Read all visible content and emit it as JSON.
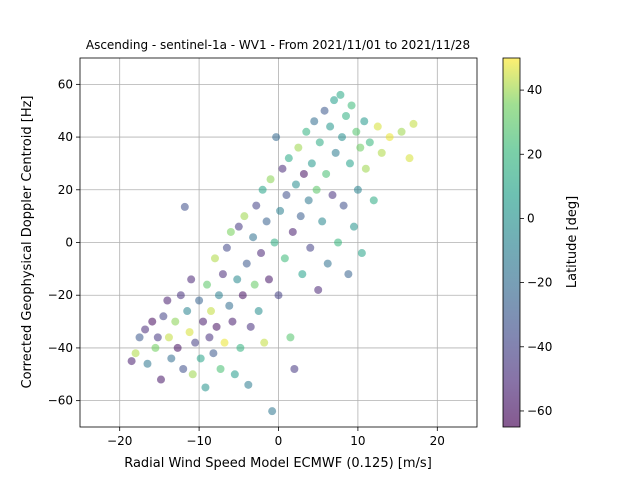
{
  "chart_data": {
    "type": "scatter",
    "title": "Ascending - sentinel-1a - WV1 - From 2021/11/01 to 2021/11/28",
    "xlabel": "Radial Wind Speed Model ECMWF (0.125) [m/s]",
    "ylabel": "Corrected Geophysical Doppler Centroid [Hz]",
    "xlim": [
      -25,
      25
    ],
    "ylim": [
      -70,
      70
    ],
    "xticks": [
      -20,
      -10,
      0,
      10,
      20
    ],
    "yticks": [
      -60,
      -40,
      -20,
      0,
      20,
      40,
      60
    ],
    "xtick_labels": [
      "−20",
      "−10",
      "0",
      "10",
      "20"
    ],
    "ytick_labels": [
      "−60",
      "−40",
      "−20",
      "0",
      "20",
      "40",
      "60"
    ],
    "grid": true,
    "colorbar": {
      "label": "Latitude [deg]",
      "range": [
        -65,
        50
      ],
      "ticks": [
        -60,
        -40,
        -20,
        0,
        20,
        40
      ],
      "tick_labels": [
        "−60",
        "−40",
        "−20",
        "0",
        "20",
        "40"
      ],
      "colormap": "viridis"
    },
    "points": [
      {
        "x": -18.5,
        "y": -45,
        "lat": -55
      },
      {
        "x": -18.0,
        "y": -42,
        "lat": 42
      },
      {
        "x": -17.5,
        "y": -36,
        "lat": -30
      },
      {
        "x": -16.8,
        "y": -33,
        "lat": -50
      },
      {
        "x": -16.5,
        "y": -46,
        "lat": -15
      },
      {
        "x": -15.9,
        "y": -30,
        "lat": -62
      },
      {
        "x": -15.5,
        "y": -40,
        "lat": 35
      },
      {
        "x": -15.2,
        "y": -36,
        "lat": -45
      },
      {
        "x": -14.8,
        "y": -52,
        "lat": -58
      },
      {
        "x": -14.5,
        "y": -28,
        "lat": -40
      },
      {
        "x": -14.0,
        "y": -22,
        "lat": -55
      },
      {
        "x": -13.8,
        "y": -36,
        "lat": 44
      },
      {
        "x": -13.5,
        "y": -44,
        "lat": -20
      },
      {
        "x": -13.0,
        "y": -30,
        "lat": 38
      },
      {
        "x": -12.7,
        "y": -40,
        "lat": -60
      },
      {
        "x": -12.3,
        "y": -20,
        "lat": -48
      },
      {
        "x": -12.0,
        "y": -48,
        "lat": -35
      },
      {
        "x": -11.8,
        "y": 13.5,
        "lat": -35
      },
      {
        "x": -11.5,
        "y": -26,
        "lat": -8
      },
      {
        "x": -11.2,
        "y": -34,
        "lat": 46
      },
      {
        "x": -11.0,
        "y": -14,
        "lat": -52
      },
      {
        "x": -10.8,
        "y": -50,
        "lat": 40
      },
      {
        "x": -10.5,
        "y": -38,
        "lat": -42
      },
      {
        "x": -10.0,
        "y": -22,
        "lat": -25
      },
      {
        "x": -9.8,
        "y": -44,
        "lat": 10
      },
      {
        "x": -9.5,
        "y": -30,
        "lat": -56
      },
      {
        "x": -9.2,
        "y": -55,
        "lat": 0
      },
      {
        "x": -9.0,
        "y": -16,
        "lat": 30
      },
      {
        "x": -8.7,
        "y": -36,
        "lat": -48
      },
      {
        "x": -8.5,
        "y": -26,
        "lat": 44
      },
      {
        "x": -8.2,
        "y": -42,
        "lat": -30
      },
      {
        "x": -8.0,
        "y": -6,
        "lat": 42
      },
      {
        "x": -7.8,
        "y": -32,
        "lat": -60
      },
      {
        "x": -7.5,
        "y": -20,
        "lat": -10
      },
      {
        "x": -7.3,
        "y": -48,
        "lat": 25
      },
      {
        "x": -7.0,
        "y": -12,
        "lat": -50
      },
      {
        "x": -6.8,
        "y": -38,
        "lat": 48
      },
      {
        "x": -6.5,
        "y": -2,
        "lat": -38
      },
      {
        "x": -6.2,
        "y": -24,
        "lat": -20
      },
      {
        "x": -6.0,
        "y": 4,
        "lat": 36
      },
      {
        "x": -5.8,
        "y": -30,
        "lat": -55
      },
      {
        "x": -5.5,
        "y": -50,
        "lat": 5
      },
      {
        "x": -5.2,
        "y": -14,
        "lat": -5
      },
      {
        "x": -5.0,
        "y": 6,
        "lat": -45
      },
      {
        "x": -4.8,
        "y": -40,
        "lat": 18
      },
      {
        "x": -4.5,
        "y": -20,
        "lat": -60
      },
      {
        "x": -4.3,
        "y": 10,
        "lat": 40
      },
      {
        "x": -4.0,
        "y": -8,
        "lat": -30
      },
      {
        "x": -3.8,
        "y": -54,
        "lat": -12
      },
      {
        "x": -3.5,
        "y": -32,
        "lat": -48
      },
      {
        "x": -3.2,
        "y": 2,
        "lat": -18
      },
      {
        "x": -3.0,
        "y": -16,
        "lat": 32
      },
      {
        "x": -2.8,
        "y": 14,
        "lat": -40
      },
      {
        "x": -2.5,
        "y": -26,
        "lat": -2
      },
      {
        "x": -2.2,
        "y": -4,
        "lat": -52
      },
      {
        "x": -2.0,
        "y": 20,
        "lat": 10
      },
      {
        "x": -1.8,
        "y": -38,
        "lat": 44
      },
      {
        "x": -1.5,
        "y": 8,
        "lat": -26
      },
      {
        "x": -1.2,
        "y": -14,
        "lat": -58
      },
      {
        "x": -1.0,
        "y": 24,
        "lat": 38
      },
      {
        "x": -0.8,
        "y": -64,
        "lat": -15
      },
      {
        "x": -0.5,
        "y": 0,
        "lat": 15
      },
      {
        "x": -0.3,
        "y": 40,
        "lat": -22
      },
      {
        "x": 0.0,
        "y": -20,
        "lat": -42
      },
      {
        "x": 0.2,
        "y": 12,
        "lat": -10
      },
      {
        "x": 0.5,
        "y": 28,
        "lat": -50
      },
      {
        "x": 0.8,
        "y": -6,
        "lat": 22
      },
      {
        "x": 1.0,
        "y": 18,
        "lat": -35
      },
      {
        "x": 1.3,
        "y": 32,
        "lat": 12
      },
      {
        "x": 1.5,
        "y": -36,
        "lat": 28
      },
      {
        "x": 1.8,
        "y": 4,
        "lat": -55
      },
      {
        "x": 2.0,
        "y": -48,
        "lat": -45
      },
      {
        "x": 2.2,
        "y": 22,
        "lat": -3
      },
      {
        "x": 2.5,
        "y": 36,
        "lat": 40
      },
      {
        "x": 2.8,
        "y": 10,
        "lat": -28
      },
      {
        "x": 3.0,
        "y": -12,
        "lat": 8
      },
      {
        "x": 3.2,
        "y": 26,
        "lat": -60
      },
      {
        "x": 3.5,
        "y": 42,
        "lat": 18
      },
      {
        "x": 3.8,
        "y": 16,
        "lat": -14
      },
      {
        "x": 4.0,
        "y": -2,
        "lat": -40
      },
      {
        "x": 4.2,
        "y": 30,
        "lat": 4
      },
      {
        "x": 4.5,
        "y": 46,
        "lat": -20
      },
      {
        "x": 4.8,
        "y": 20,
        "lat": 30
      },
      {
        "x": 5.0,
        "y": -18,
        "lat": -52
      },
      {
        "x": 5.2,
        "y": 38,
        "lat": 14
      },
      {
        "x": 5.5,
        "y": 8,
        "lat": -6
      },
      {
        "x": 5.8,
        "y": 50,
        "lat": -30
      },
      {
        "x": 6.0,
        "y": 26,
        "lat": 25
      },
      {
        "x": 6.2,
        "y": -8,
        "lat": -18
      },
      {
        "x": 6.5,
        "y": 44,
        "lat": 2
      },
      {
        "x": 6.8,
        "y": 18,
        "lat": -48
      },
      {
        "x": 7.0,
        "y": 54,
        "lat": 6
      },
      {
        "x": 7.2,
        "y": 34,
        "lat": -12
      },
      {
        "x": 7.5,
        "y": 0,
        "lat": 20
      },
      {
        "x": 7.8,
        "y": 56,
        "lat": 12
      },
      {
        "x": 8.0,
        "y": 40,
        "lat": -2
      },
      {
        "x": 8.2,
        "y": 14,
        "lat": -35
      },
      {
        "x": 8.5,
        "y": 48,
        "lat": 16
      },
      {
        "x": 8.8,
        "y": -12,
        "lat": -25
      },
      {
        "x": 9.0,
        "y": 30,
        "lat": 8
      },
      {
        "x": 9.2,
        "y": 52,
        "lat": 22
      },
      {
        "x": 9.5,
        "y": 6,
        "lat": 0
      },
      {
        "x": 9.8,
        "y": 42,
        "lat": 28
      },
      {
        "x": 10.0,
        "y": 20,
        "lat": -8
      },
      {
        "x": 10.3,
        "y": 36,
        "lat": 34
      },
      {
        "x": 10.5,
        "y": -4,
        "lat": 10
      },
      {
        "x": 10.8,
        "y": 46,
        "lat": 4
      },
      {
        "x": 11.0,
        "y": 28,
        "lat": 40
      },
      {
        "x": 11.5,
        "y": 38,
        "lat": 20
      },
      {
        "x": 12.0,
        "y": 16,
        "lat": 14
      },
      {
        "x": 12.5,
        "y": 44,
        "lat": 46
      },
      {
        "x": 13.0,
        "y": 34,
        "lat": 42
      },
      {
        "x": 14.0,
        "y": 40,
        "lat": 48
      },
      {
        "x": 15.5,
        "y": 42,
        "lat": 40
      },
      {
        "x": 16.5,
        "y": 32,
        "lat": 46
      },
      {
        "x": 17.0,
        "y": 45,
        "lat": 44
      }
    ]
  }
}
